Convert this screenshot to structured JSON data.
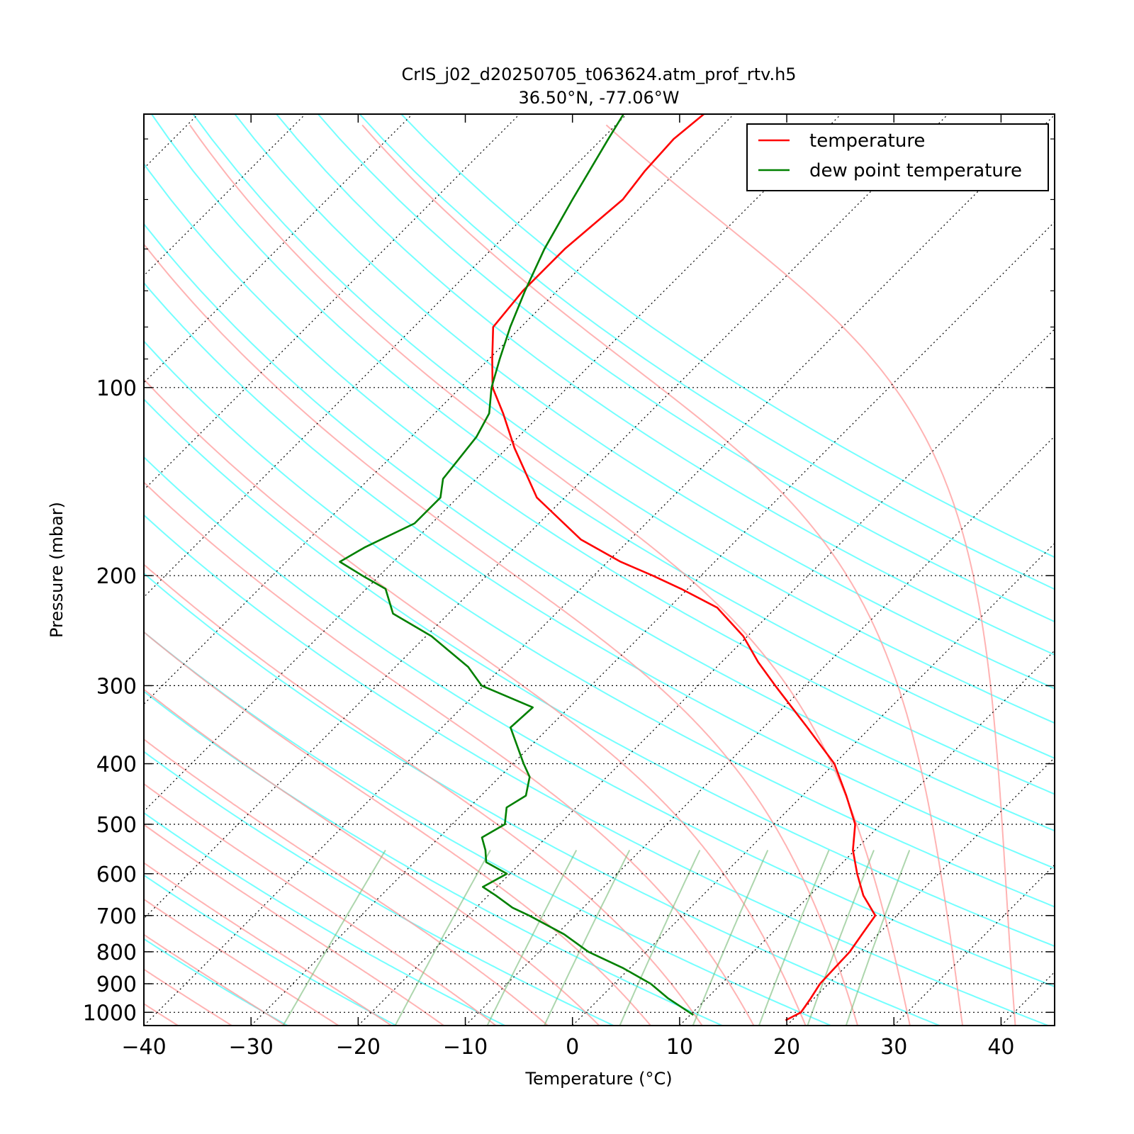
{
  "chart_data": {
    "type": "line",
    "title": "CrIS_j02_d20250705_t063624.atm_prof_rtv.h5",
    "subtitle": "36.50°N, -77.06°W",
    "xlabel": "Temperature (°C)",
    "ylabel": "Pressure (mbar)",
    "xlim": [
      -40,
      45
    ],
    "ylim": [
      1050,
      36.5
    ],
    "yscale": "log",
    "skew": true,
    "x_ticks": [
      "−40",
      "−30",
      "−20",
      "−10",
      "0",
      "10",
      "20",
      "30",
      "40"
    ],
    "x_tick_values": [
      -40,
      -30,
      -20,
      -10,
      0,
      10,
      20,
      30,
      40
    ],
    "y_ticks": [
      "100",
      "200",
      "300",
      "400",
      "500",
      "600",
      "700",
      "800",
      "900",
      "1000"
    ],
    "y_tick_values": [
      100,
      200,
      300,
      400,
      500,
      600,
      700,
      800,
      900,
      1000
    ],
    "legend_position": "top-right",
    "series": [
      {
        "name": "temperature",
        "color": "#ff0000",
        "points": [
          [
            1030,
            19.4
          ],
          [
            1000,
            20.1
          ],
          [
            950,
            19.7
          ],
          [
            900,
            19.2
          ],
          [
            850,
            19.1
          ],
          [
            800,
            19.0
          ],
          [
            750,
            18.5
          ],
          [
            700,
            18.0
          ],
          [
            650,
            15.0
          ],
          [
            600,
            12.4
          ],
          [
            550,
            9.8
          ],
          [
            500,
            7.6
          ],
          [
            450,
            4.1
          ],
          [
            400,
            0.0
          ],
          [
            350,
            -5.9
          ],
          [
            300,
            -12.8
          ],
          [
            275,
            -16.6
          ],
          [
            250,
            -20.4
          ],
          [
            225,
            -25.5
          ],
          [
            210,
            -30.6
          ],
          [
            200,
            -34.5
          ],
          [
            190,
            -38.8
          ],
          [
            175,
            -44.6
          ],
          [
            150,
            -52.6
          ],
          [
            125,
            -59.3
          ],
          [
            110,
            -63.6
          ],
          [
            100,
            -67.0
          ],
          [
            90,
            -69.7
          ],
          [
            80,
            -72.6
          ],
          [
            70,
            -73.2
          ],
          [
            60,
            -73.2
          ],
          [
            50,
            -72.4
          ],
          [
            45,
            -73.0
          ],
          [
            40,
            -73.3
          ],
          [
            36.5,
            -72.8
          ]
        ]
      },
      {
        "name": "dew point temperature",
        "color": "#008000",
        "points": [
          [
            1010,
            10.3
          ],
          [
            950,
            6.4
          ],
          [
            900,
            3.4
          ],
          [
            850,
            -0.6
          ],
          [
            800,
            -5.4
          ],
          [
            750,
            -9.3
          ],
          [
            700,
            -14.3
          ],
          [
            680,
            -16.6
          ],
          [
            650,
            -19.3
          ],
          [
            630,
            -21.3
          ],
          [
            600,
            -20.3
          ],
          [
            575,
            -23.3
          ],
          [
            550,
            -24.5
          ],
          [
            525,
            -26.0
          ],
          [
            500,
            -25.1
          ],
          [
            470,
            -26.5
          ],
          [
            450,
            -25.8
          ],
          [
            420,
            -27.2
          ],
          [
            400,
            -29.0
          ],
          [
            350,
            -33.6
          ],
          [
            325,
            -33.4
          ],
          [
            300,
            -40.2
          ],
          [
            280,
            -43.2
          ],
          [
            250,
            -49.5
          ],
          [
            230,
            -55.2
          ],
          [
            210,
            -58.2
          ],
          [
            200,
            -61.6
          ],
          [
            190,
            -65.0
          ],
          [
            180,
            -64.0
          ],
          [
            165,
            -61.6
          ],
          [
            150,
            -61.6
          ],
          [
            140,
            -63.1
          ],
          [
            120,
            -63.9
          ],
          [
            110,
            -64.9
          ],
          [
            100,
            -67.1
          ],
          [
            90,
            -69.0
          ],
          [
            80,
            -71.0
          ],
          [
            70,
            -73.0
          ],
          [
            60,
            -75.1
          ],
          [
            50,
            -77.1
          ],
          [
            40,
            -79.4
          ],
          [
            36.5,
            -80.3
          ]
        ]
      }
    ],
    "dry_adiabats_theta_c": [
      -30,
      -20,
      -10,
      0,
      10,
      20,
      30,
      40,
      50,
      60,
      70,
      80,
      90,
      100,
      110,
      120,
      130,
      140,
      150,
      160,
      170
    ],
    "moist_adiabats_c": [
      -40,
      -35,
      -30,
      -25,
      -20,
      -15,
      -10,
      -5,
      0,
      5,
      10,
      15,
      20,
      25,
      30,
      35,
      40
    ],
    "mixing_ratio_lines_gkg": [
      0.4,
      1,
      2,
      3,
      5,
      8,
      12,
      16,
      20
    ],
    "colors": {
      "temperature": "#ff0000",
      "dewpoint": "#008000",
      "dry_adiabat": "#00ffff",
      "moist_adiabat": "#ff9999",
      "mixing_ratio": "#77bb77",
      "isotherm": "#000000"
    }
  }
}
